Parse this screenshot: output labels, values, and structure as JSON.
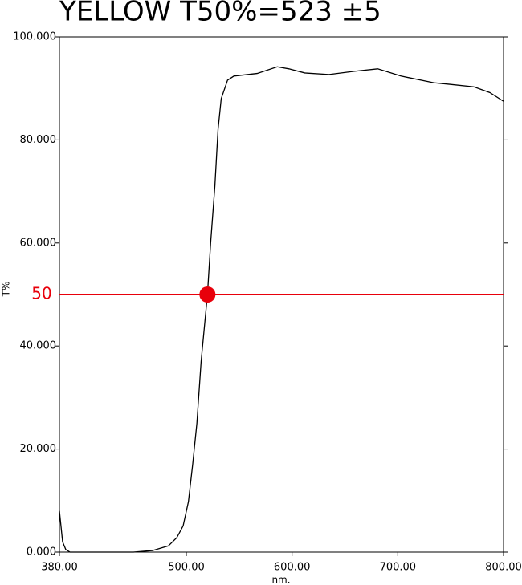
{
  "chart_data": {
    "type": "line",
    "title": "YELLOW T50%=523 ±5",
    "x_label": "nm.",
    "y_label": "T%",
    "xlim": [
      380,
      800
    ],
    "ylim": [
      0,
      100
    ],
    "xticks": [
      {
        "value": 380,
        "label": "380.00"
      },
      {
        "value": 500,
        "label": "500.00"
      },
      {
        "value": 600,
        "label": "600.00"
      },
      {
        "value": 700,
        "label": "700.00"
      },
      {
        "value": 800,
        "label": "800.00"
      }
    ],
    "yticks": [
      {
        "value": 0,
        "label": "0.000"
      },
      {
        "value": 20,
        "label": "20.000"
      },
      {
        "value": 40,
        "label": "40.000"
      },
      {
        "value": 60,
        "label": "60.000"
      },
      {
        "value": 80,
        "label": "80.000"
      },
      {
        "value": 100,
        "label": "100.000"
      }
    ],
    "hline": 50,
    "hline_color": "#e8000b",
    "marker": {
      "x": 520,
      "y": 50
    },
    "series": [
      {
        "color": "#000000",
        "x": [
          380,
          383,
          386,
          390,
          400,
          450,
          468,
          483,
          491,
          497,
          502,
          506,
          510,
          514,
          520,
          523,
          527,
          530,
          533,
          539,
          545,
          567,
          586,
          597,
          612,
          635,
          658,
          681,
          703,
          734,
          749,
          772,
          787,
          800
        ],
        "values": [
          8,
          2,
          0.5,
          0,
          0,
          0,
          0.3,
          1.2,
          2.8,
          5.1,
          9.8,
          17,
          25,
          37,
          50,
          60,
          71,
          82,
          88,
          91.6,
          92.4,
          92.9,
          94.2,
          93.8,
          93,
          92.7,
          93.3,
          93.8,
          92.4,
          91.1,
          90.8,
          90.3,
          89.2,
          87.5
        ]
      }
    ]
  }
}
